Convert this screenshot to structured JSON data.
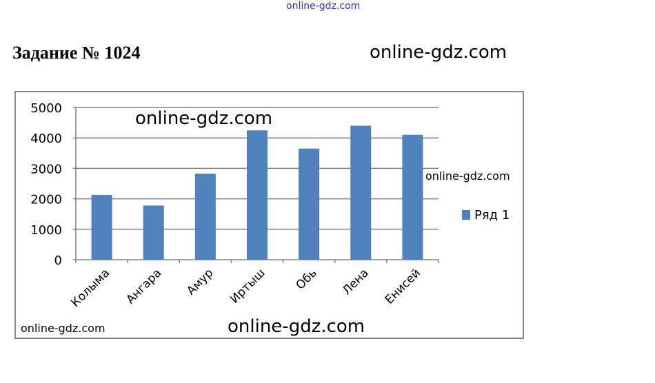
{
  "header": {
    "title": "Задание № 1024"
  },
  "watermarks": [
    "online-gdz.com",
    "online-gdz.com",
    "online-gdz.com",
    "online-gdz.com",
    "online-gdz.com",
    "online-gdz.com"
  ],
  "chart_data": {
    "type": "bar",
    "categories": [
      "Колыма",
      "Ангара",
      "Амур",
      "Иртыш",
      "Обь",
      "Лена",
      "Енисей"
    ],
    "series": [
      {
        "name": "Ряд 1",
        "values": [
          2129,
          1779,
          2824,
          4248,
          3650,
          4400,
          4102
        ]
      }
    ],
    "yticks": [
      "0",
      "1000",
      "2000",
      "3000",
      "4000",
      "5000"
    ],
    "ylim": [
      0,
      5000
    ],
    "grid": true,
    "legend": "right",
    "color": "#4f81bd"
  }
}
